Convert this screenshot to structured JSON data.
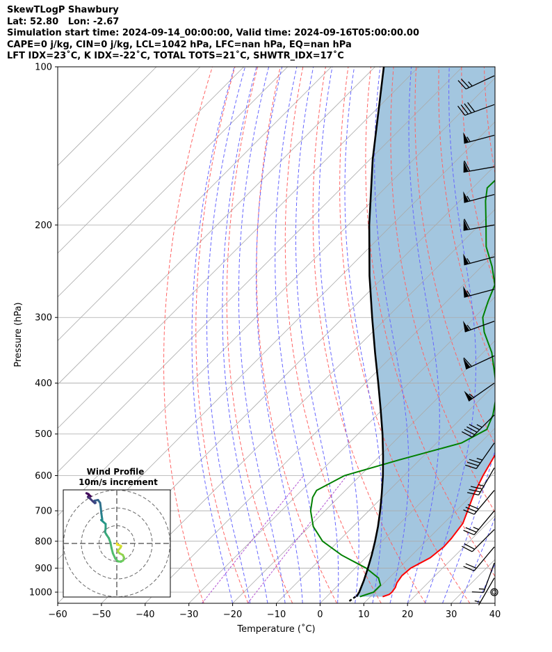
{
  "header": {
    "line1": "SkewTLogP Shawbury",
    "line2": "Lat: 52.80   Lon: -2.67",
    "line3": "Simulation start time: 2024-09-14_00:00:00, Valid time: 2024-09-16T05:00:00.00",
    "line4": "CAPE=0 j/kg, CIN=0 j/kg, LCL=1042 hPa, LFC=nan hPa, EQ=nan hPa",
    "line5": "LFT IDX=23˚C, K IDX=-22˚C, TOTAL TOTS=21˚C, SHWTR_IDX=17˚C"
  },
  "chart_data": {
    "type": "line",
    "xlabel": "Temperature (˚C)",
    "ylabel": "Pressure (hPa)",
    "xlim": [
      -60,
      40
    ],
    "ylim": [
      1050,
      100
    ],
    "yscale": "log",
    "skew": "45 degrees",
    "xticks": [
      "−60",
      "−50",
      "−40",
      "−30",
      "−20",
      "−10",
      "0",
      "10",
      "20",
      "30",
      "40"
    ],
    "yticks": [
      "100",
      "200",
      "300",
      "400",
      "500",
      "600",
      "700",
      "800",
      "900",
      "1000"
    ],
    "grid": true,
    "colors": {
      "temperature": "#ff0000",
      "dewpoint": "#008000",
      "parcel": "#000000",
      "cape_cin_fill": "#a3c6df",
      "isotherms": "#aaaaaa",
      "dry_adiabats": "#ff6464",
      "moist_adiabats": "#6666ff",
      "mixing_ratio": "#b050d0"
    },
    "series": [
      {
        "key": "temperature",
        "points": [
          [
            1020,
            12.8
          ],
          [
            1010,
            13.8
          ],
          [
            1000,
            13.9
          ],
          [
            980,
            13.6
          ],
          [
            960,
            12.9
          ],
          [
            930,
            12.4
          ],
          [
            900,
            12.7
          ],
          [
            860,
            14.8
          ],
          [
            820,
            15.4
          ],
          [
            790,
            15.2
          ],
          [
            740,
            14.4
          ],
          [
            700,
            12.6
          ],
          [
            650,
            10.2
          ],
          [
            600,
            8.1
          ],
          [
            550,
            6.2
          ],
          [
            500,
            5.0
          ],
          [
            470,
            3.9
          ],
          [
            440,
            2.3
          ],
          [
            400,
            -1.6
          ],
          [
            370,
            -4.4
          ],
          [
            340,
            -7.8
          ],
          [
            300,
            -13.5
          ],
          [
            280,
            -16.8
          ],
          [
            250,
            -22.8
          ],
          [
            220,
            -29.1
          ],
          [
            200,
            -33.4
          ],
          [
            190,
            -35.8
          ],
          [
            180,
            -38.3
          ],
          [
            170,
            -40.9
          ],
          [
            160,
            -43.5
          ],
          [
            150,
            -46.0
          ],
          [
            140,
            -48.5
          ],
          [
            130,
            -50.8
          ],
          [
            120,
            -52.8
          ],
          [
            110,
            -55.0
          ],
          [
            100,
            -56.7
          ]
        ]
      },
      {
        "key": "dewpoint",
        "points": [
          [
            1020,
            7.6
          ],
          [
            1000,
            9.7
          ],
          [
            970,
            9.7
          ],
          [
            940,
            7.6
          ],
          [
            900,
            2.5
          ],
          [
            850,
            -6.1
          ],
          [
            800,
            -13.6
          ],
          [
            750,
            -19.1
          ],
          [
            700,
            -23.3
          ],
          [
            660,
            -25.9
          ],
          [
            640,
            -26.6
          ],
          [
            600,
            -23.6
          ],
          [
            560,
            -14.7
          ],
          [
            520,
            -4.3
          ],
          [
            490,
            -1.6
          ],
          [
            460,
            -3.5
          ],
          [
            420,
            -7.4
          ],
          [
            390,
            -11.6
          ],
          [
            350,
            -18.0
          ],
          [
            320,
            -24.4
          ],
          [
            300,
            -28.1
          ],
          [
            280,
            -30.5
          ],
          [
            260,
            -32.8
          ],
          [
            240,
            -37.6
          ],
          [
            220,
            -43.5
          ],
          [
            200,
            -48.5
          ],
          [
            180,
            -54.1
          ],
          [
            170,
            -56.7
          ],
          [
            160,
            -56.5
          ],
          [
            150,
            -57.0
          ],
          [
            140,
            -60.9
          ],
          [
            130,
            -67.2
          ],
          [
            120,
            -70.1
          ],
          [
            110,
            -72.0
          ],
          [
            100,
            -71.3
          ]
        ]
      },
      {
        "key": "parcel",
        "points": [
          [
            1020,
            6.8
          ],
          [
            1000,
            6.4
          ],
          [
            950,
            4.8
          ],
          [
            900,
            2.9
          ],
          [
            850,
            0.8
          ],
          [
            800,
            -1.6
          ],
          [
            750,
            -4.3
          ],
          [
            700,
            -7.4
          ],
          [
            650,
            -10.9
          ],
          [
            600,
            -14.8
          ],
          [
            550,
            -19.3
          ],
          [
            500,
            -24.4
          ],
          [
            450,
            -30.3
          ],
          [
            400,
            -37.0
          ],
          [
            350,
            -44.7
          ],
          [
            300,
            -53.4
          ],
          [
            250,
            -63.5
          ],
          [
            200,
            -75.2
          ],
          [
            150,
            -89.4
          ],
          [
            100,
            -108.0
          ]
        ]
      }
    ],
    "wind_barbs": [
      [
        1000,
        0,
        0
      ],
      [
        940,
        210,
        5
      ],
      [
        880,
        200,
        15
      ],
      [
        820,
        220,
        20
      ],
      [
        760,
        225,
        20
      ],
      [
        700,
        220,
        25
      ],
      [
        640,
        220,
        30
      ],
      [
        580,
        210,
        35
      ],
      [
        520,
        215,
        35
      ],
      [
        460,
        225,
        45
      ],
      [
        400,
        235,
        55
      ],
      [
        355,
        245,
        60
      ],
      [
        305,
        250,
        55
      ],
      [
        265,
        255,
        55
      ],
      [
        230,
        255,
        55
      ],
      [
        200,
        260,
        60
      ],
      [
        175,
        255,
        55
      ],
      [
        155,
        260,
        60
      ],
      [
        135,
        255,
        55
      ],
      [
        118,
        250,
        40
      ],
      [
        104,
        245,
        25
      ]
    ],
    "hodograph": {
      "title": "Wind Profile",
      "subtitle": "10m/s increment",
      "points": [
        [
          0.0,
          0.0,
          1000
        ],
        [
          0.3,
          -0.8,
          980
        ],
        [
          1.3,
          -0.9,
          960
        ],
        [
          2.5,
          -1.5,
          940
        ],
        [
          2.1,
          -2.4,
          920
        ],
        [
          1.2,
          -3.4,
          900
        ],
        [
          0.4,
          -4.3,
          880
        ],
        [
          1.5,
          -5.5,
          860
        ],
        [
          3.4,
          -6.5,
          840
        ],
        [
          4.1,
          -8.0,
          820
        ],
        [
          3.6,
          -9.6,
          800
        ],
        [
          2.3,
          -10.3,
          780
        ],
        [
          0.7,
          -10.1,
          760
        ],
        [
          -0.8,
          -8.6,
          740
        ],
        [
          -2.2,
          -5.6,
          720
        ],
        [
          -3.0,
          -2.5,
          700
        ],
        [
          -3.6,
          0.5,
          680
        ],
        [
          -4.5,
          3.0,
          660
        ],
        [
          -5.8,
          4.9,
          640
        ],
        [
          -6.6,
          6.3,
          620
        ],
        [
          -6.3,
          8.7,
          600
        ],
        [
          -6.3,
          11.0,
          580
        ],
        [
          -7.9,
          12.4,
          560
        ],
        [
          -8.8,
          13.2,
          540
        ],
        [
          -8.2,
          13.6,
          520
        ],
        [
          -8.4,
          14.8,
          500
        ],
        [
          -8.7,
          16.9,
          470
        ],
        [
          -9.0,
          19.7,
          440
        ],
        [
          -9.4,
          22.9,
          410
        ],
        [
          -10.6,
          24.5,
          380
        ],
        [
          -12.6,
          24.1,
          350
        ],
        [
          -12.0,
          22.9,
          320
        ],
        [
          -12.4,
          22.7,
          290
        ],
        [
          -13.5,
          23.7,
          260
        ],
        [
          -15.1,
          25.3,
          230
        ],
        [
          -16.3,
          26.2,
          200
        ],
        [
          -15.7,
          27.0,
          180
        ],
        [
          -15.9,
          27.8,
          160
        ],
        [
          -17.1,
          28.3,
          140
        ],
        [
          -16.6,
          28.1,
          120
        ],
        [
          -14.7,
          26.6,
          100
        ]
      ]
    }
  }
}
